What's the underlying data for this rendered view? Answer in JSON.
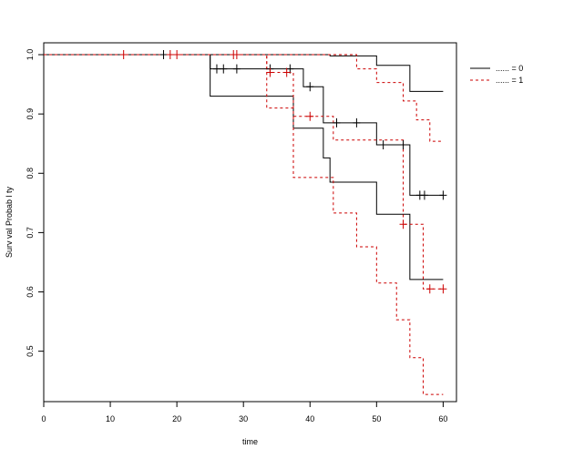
{
  "chart_data": {
    "type": "line",
    "subtype": "kaplan-meier step plot with confidence bands",
    "title": "",
    "xlabel": "time",
    "ylabel": "Surv val Probab l ty",
    "xlim": [
      0,
      62
    ],
    "ylim": [
      0.415,
      1.02
    ],
    "xticks": [
      0,
      10,
      20,
      30,
      40,
      50,
      60
    ],
    "yticks": [
      0.5,
      0.6,
      0.7,
      0.8,
      0.9,
      1.0
    ],
    "xtick_labels": [
      "0",
      "10",
      "20",
      "30",
      "40",
      "50",
      "60"
    ],
    "ytick_labels": [
      "0.5",
      "0.6",
      "0.7",
      "0.8",
      "0.9",
      "1.0"
    ],
    "grid": false,
    "legend_position": "top-right",
    "legend": [
      {
        "label": "...... = 0",
        "color": "#000000",
        "dash": "solid"
      },
      {
        "label": "...... = 1",
        "color": "#cc0000",
        "dash": "dashed"
      }
    ],
    "series": [
      {
        "group": "0",
        "role": "estimate",
        "color": "#000000",
        "dash": "solid",
        "x": [
          0,
          25,
          39,
          42,
          50,
          55,
          60
        ],
        "y": [
          1.0,
          0.976,
          0.946,
          0.885,
          0.848,
          0.763,
          0.763
        ]
      },
      {
        "group": "0",
        "role": "upper",
        "color": "#000000",
        "dash": "solid",
        "x": [
          0,
          43,
          50,
          55,
          60
        ],
        "y": [
          1.0,
          0.998,
          0.982,
          0.938,
          0.938
        ]
      },
      {
        "group": "0",
        "role": "lower",
        "color": "#000000",
        "dash": "solid",
        "x": [
          0,
          25,
          37.5,
          42,
          43,
          50,
          55,
          60
        ],
        "y": [
          1.0,
          0.93,
          0.876,
          0.826,
          0.785,
          0.731,
          0.621,
          0.621
        ]
      },
      {
        "group": "1",
        "role": "estimate",
        "color": "#cc0000",
        "dash": "dashed",
        "x": [
          0,
          33.5,
          37.5,
          43.5,
          54,
          57,
          60
        ],
        "y": [
          1.0,
          0.97,
          0.896,
          0.856,
          0.714,
          0.605,
          0.605
        ]
      },
      {
        "group": "1",
        "role": "upper",
        "color": "#cc0000",
        "dash": "dashed",
        "x": [
          0,
          47,
          50,
          54,
          56,
          58,
          60
        ],
        "y": [
          1.0,
          0.976,
          0.953,
          0.922,
          0.89,
          0.854,
          0.854
        ]
      },
      {
        "group": "1",
        "role": "lower",
        "color": "#cc0000",
        "dash": "dashed",
        "x": [
          0,
          33.5,
          37.5,
          43.5,
          47,
          50,
          53,
          55,
          57,
          60
        ],
        "y": [
          1.0,
          0.91,
          0.793,
          0.733,
          0.676,
          0.615,
          0.553,
          0.489,
          0.427,
          0.427
        ]
      }
    ],
    "censor_marks": [
      {
        "group": "0",
        "color": "#000000",
        "x": [
          18,
          26,
          27,
          29,
          34,
          37,
          40,
          44,
          47,
          51,
          54,
          56.5,
          57.2,
          60
        ],
        "y": [
          1.0,
          0.976,
          0.976,
          0.976,
          0.976,
          0.976,
          0.946,
          0.885,
          0.885,
          0.848,
          0.848,
          0.763,
          0.763,
          0.763
        ]
      },
      {
        "group": "1",
        "color": "#cc0000",
        "x": [
          12,
          19,
          20,
          28.5,
          29,
          34,
          36.5,
          40,
          54,
          58,
          60
        ],
        "y": [
          1.0,
          1.0,
          1.0,
          1.0,
          1.0,
          0.97,
          0.97,
          0.896,
          0.714,
          0.605,
          0.605
        ]
      }
    ]
  }
}
